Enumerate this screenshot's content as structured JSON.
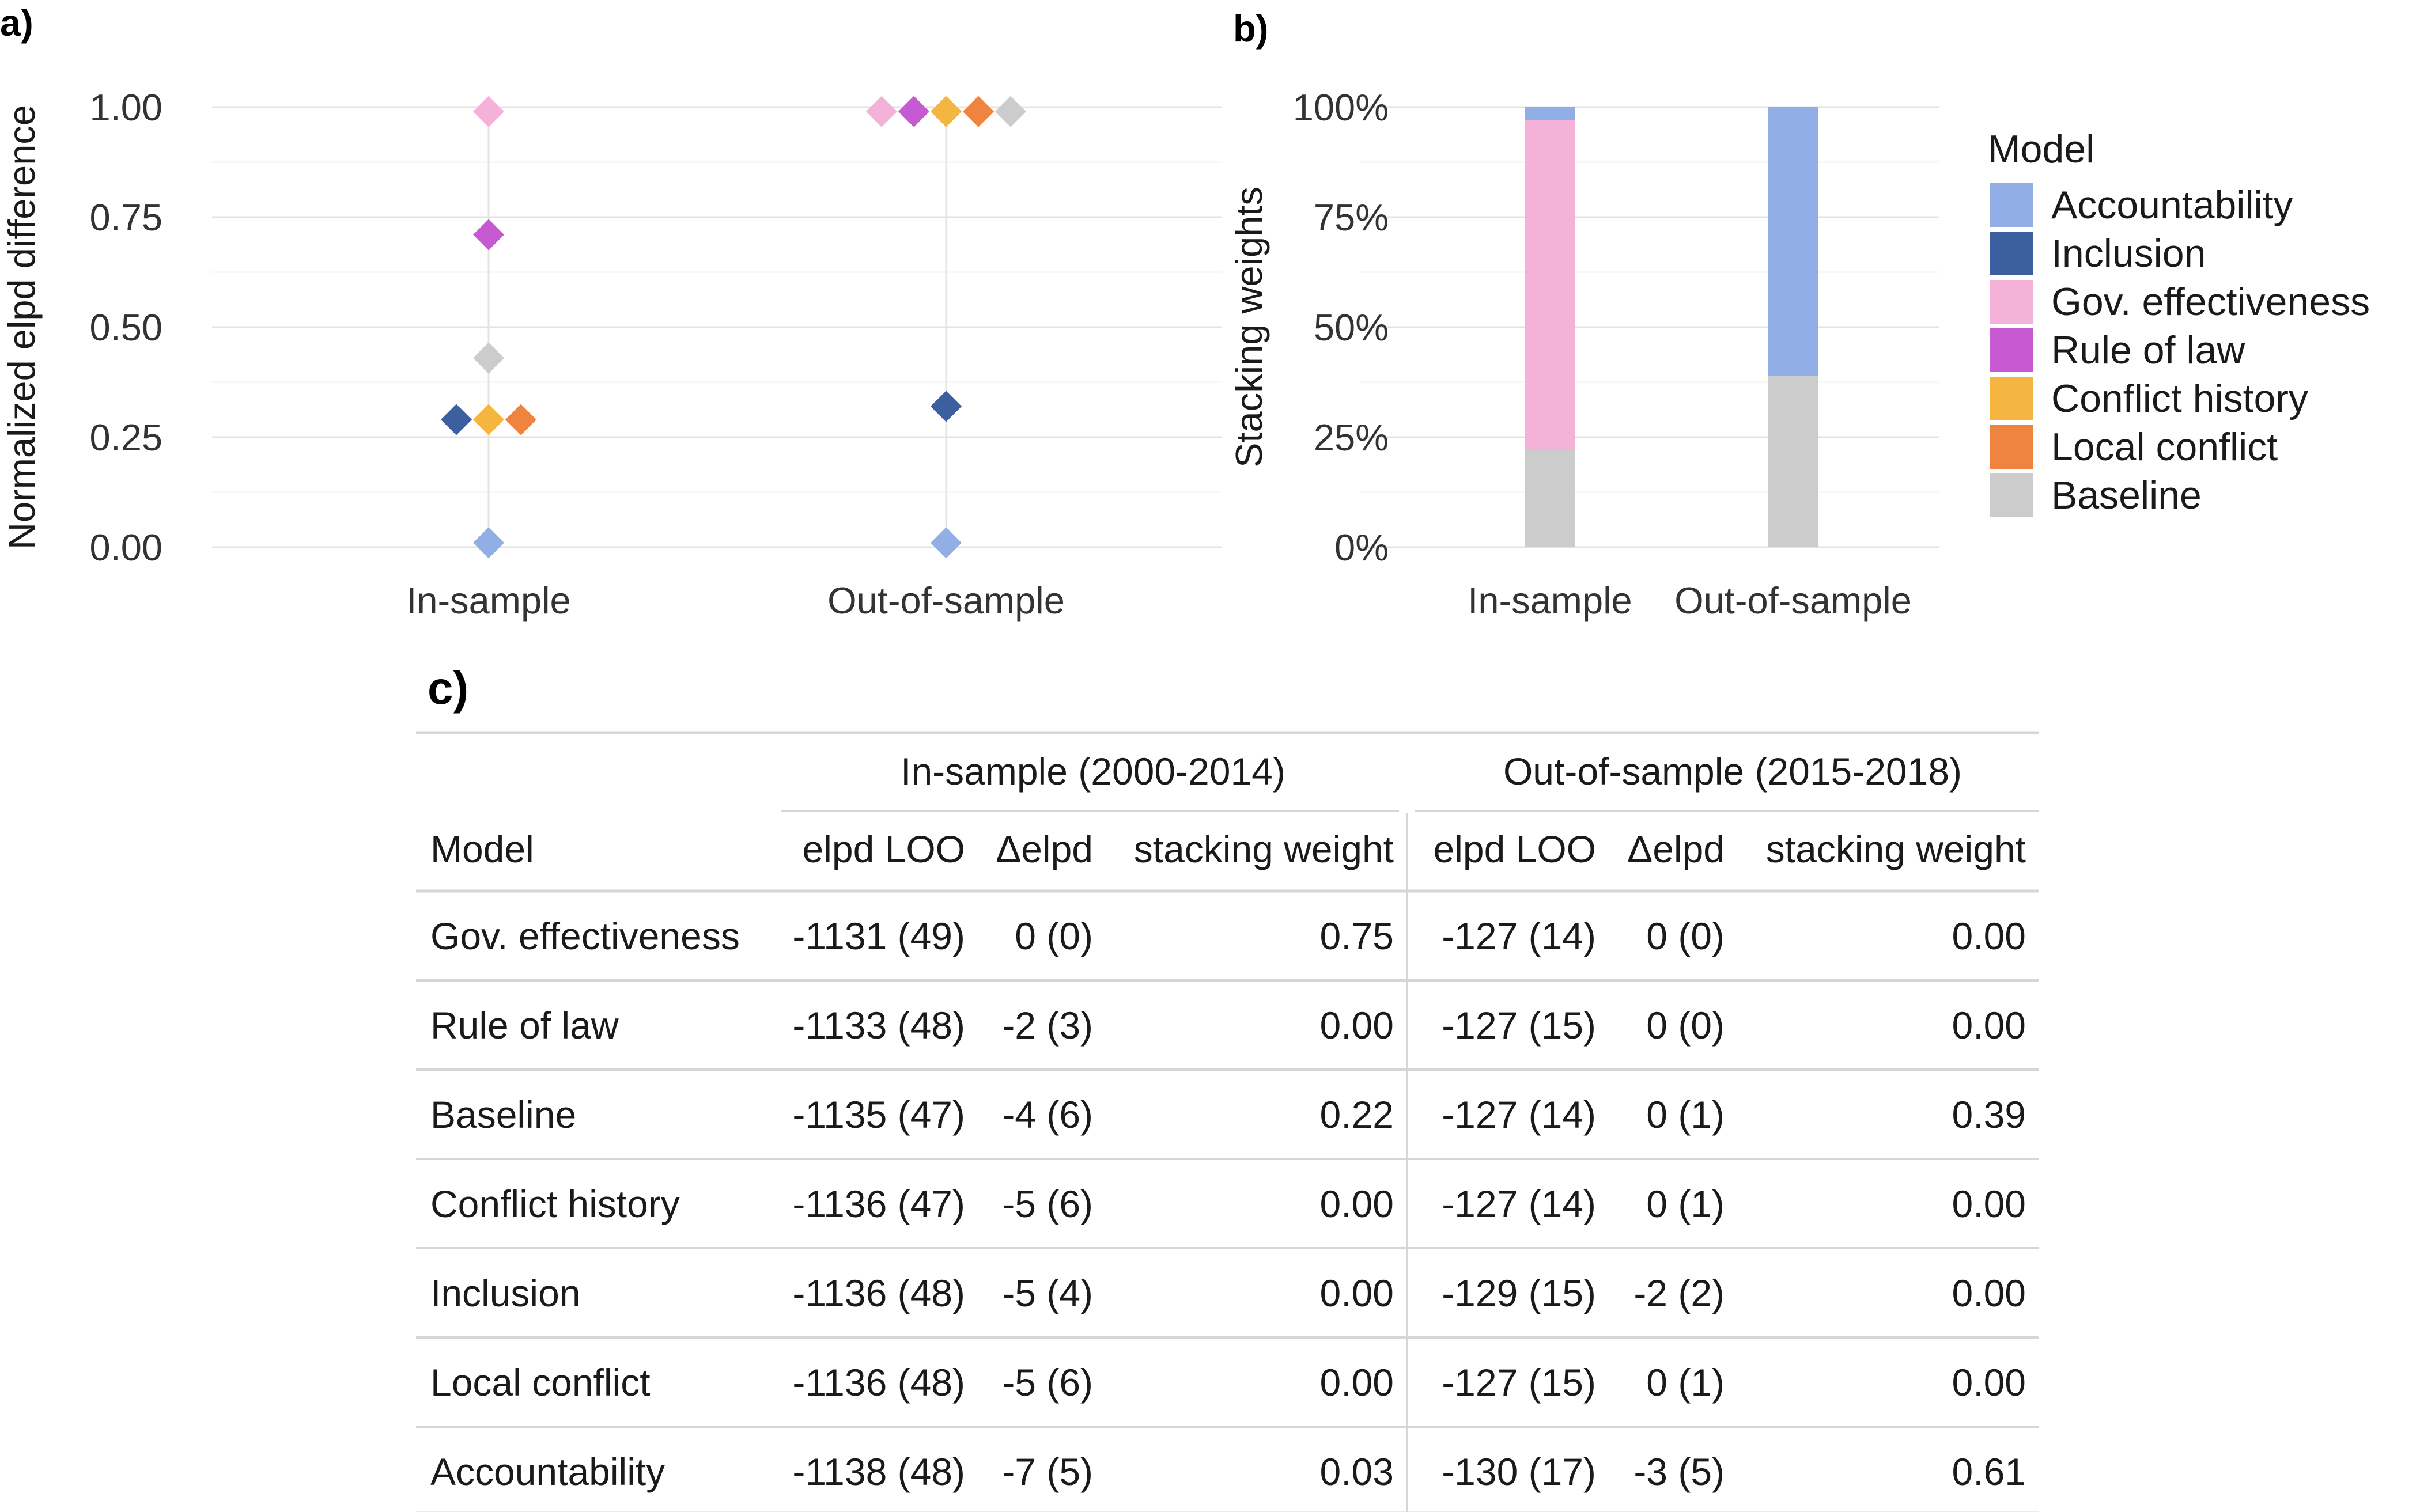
{
  "panels": {
    "a": "a)",
    "b": "b)",
    "c": "c)"
  },
  "colors": {
    "Accountability": "#92aee6",
    "Inclusion": "#3c5f9f",
    "Gov. effectiveness": "#f4b2d9",
    "Rule of law": "#c75ad3",
    "Conflict history": "#f4b541",
    "Local conflict": "#ef8340",
    "Baseline": "#cccccc"
  },
  "chart_data": [
    {
      "type": "scatter",
      "panel": "a",
      "ylabel": "Normalized elpd difference",
      "xlabel": "",
      "categories": [
        "In-sample",
        "Out-of-sample"
      ],
      "ylim": [
        0,
        1
      ],
      "yticks": [
        "0.00",
        "0.25",
        "0.50",
        "0.75",
        "1.00"
      ],
      "grid": true,
      "series": [
        {
          "name": "Accountability",
          "values": [
            0.01,
            0.01
          ]
        },
        {
          "name": "Inclusion",
          "values": [
            0.29,
            0.32
          ]
        },
        {
          "name": "Gov. effectiveness",
          "values": [
            0.99,
            0.99
          ]
        },
        {
          "name": "Rule of law",
          "values": [
            0.71,
            0.99
          ]
        },
        {
          "name": "Conflict history",
          "values": [
            0.29,
            0.99
          ]
        },
        {
          "name": "Local conflict",
          "values": [
            0.29,
            0.99
          ]
        },
        {
          "name": "Baseline",
          "values": [
            0.43,
            0.99
          ]
        }
      ]
    },
    {
      "type": "bar",
      "stacked": true,
      "panel": "b",
      "ylabel": "Stacking weights",
      "xlabel": "",
      "categories": [
        "In-sample",
        "Out-of-sample"
      ],
      "ylim": [
        0,
        1
      ],
      "yticks": [
        "0%",
        "25%",
        "50%",
        "75%",
        "100%"
      ],
      "legend": {
        "title": "Model",
        "position": "right"
      },
      "series": [
        {
          "name": "Accountability",
          "values": [
            0.03,
            0.61
          ]
        },
        {
          "name": "Inclusion",
          "values": [
            0.0,
            0.0
          ]
        },
        {
          "name": "Gov. effectiveness",
          "values": [
            0.75,
            0.0
          ]
        },
        {
          "name": "Rule of law",
          "values": [
            0.0,
            0.0
          ]
        },
        {
          "name": "Conflict history",
          "values": [
            0.0,
            0.0
          ]
        },
        {
          "name": "Local conflict",
          "values": [
            0.0,
            0.0
          ]
        },
        {
          "name": "Baseline",
          "values": [
            0.22,
            0.39
          ]
        }
      ]
    },
    {
      "type": "table",
      "panel": "c",
      "group_headers": [
        "In-sample (2000-2014)",
        "Out-of-sample (2015-2018)"
      ],
      "columns": [
        "Model",
        "elpd LOO",
        "Δelpd",
        "stacking weight",
        "elpd LOO",
        "Δelpd",
        "stacking weight"
      ],
      "rows": [
        [
          "Gov. effectiveness",
          "-1131 (49)",
          "0 (0)",
          "0.75",
          "-127 (14)",
          "0 (0)",
          "0.00"
        ],
        [
          "Rule of law",
          "-1133 (48)",
          "-2 (3)",
          "0.00",
          "-127 (15)",
          "0 (0)",
          "0.00"
        ],
        [
          "Baseline",
          "-1135 (47)",
          "-4 (6)",
          "0.22",
          "-127 (14)",
          "0 (1)",
          "0.39"
        ],
        [
          "Conflict history",
          "-1136 (47)",
          "-5 (6)",
          "0.00",
          "-127 (14)",
          "0 (1)",
          "0.00"
        ],
        [
          "Inclusion",
          "-1136 (48)",
          "-5 (4)",
          "0.00",
          "-129 (15)",
          "-2 (2)",
          "0.00"
        ],
        [
          "Local conflict",
          "-1136 (48)",
          "-5 (6)",
          "0.00",
          "-127 (15)",
          "0 (1)",
          "0.00"
        ],
        [
          "Accountability",
          "-1138 (48)",
          "-7 (5)",
          "0.03",
          "-130 (17)",
          "-3 (5)",
          "0.61"
        ]
      ]
    }
  ]
}
